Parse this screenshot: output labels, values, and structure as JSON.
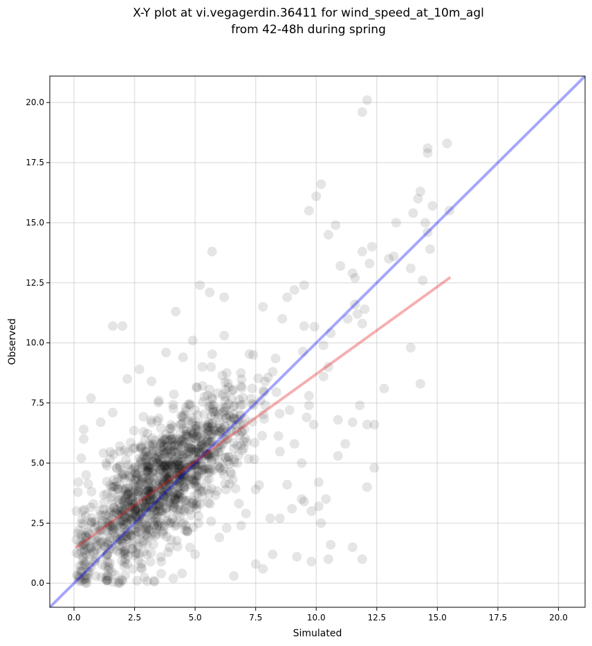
{
  "chart_data": {
    "type": "scatter",
    "title_lines": [
      "X-Y plot at vi.vegagerdin.36411 for wind_speed_at_10m_agl",
      "from 42-48h during spring"
    ],
    "xlabel": "Simulated",
    "ylabel": "Observed",
    "xlim": [
      -1.0,
      21.1
    ],
    "ylim": [
      -1.0,
      21.1
    ],
    "x_ticks": [
      0.0,
      2.5,
      5.0,
      7.5,
      10.0,
      12.5,
      15.0,
      17.5,
      20.0
    ],
    "x_tick_labels": [
      "0.0",
      "2.5",
      "5.0",
      "7.5",
      "10.0",
      "12.5",
      "15.0",
      "17.5",
      "20.0"
    ],
    "y_ticks": [
      0.0,
      2.5,
      5.0,
      7.5,
      10.0,
      12.5,
      15.0,
      17.5,
      20.0
    ],
    "y_tick_labels": [
      "0.0",
      "2.5",
      "5.0",
      "7.5",
      "10.0",
      "12.5",
      "15.0",
      "17.5",
      "20.0"
    ],
    "grid": true,
    "point_color": "#000000",
    "point_alpha": 0.1,
    "reference_line": {
      "x": [
        -1.0,
        21.1
      ],
      "y": [
        -1.0,
        21.1
      ],
      "color": "#0000ff",
      "alpha": 0.35
    },
    "regression_line": {
      "x": [
        0.1,
        15.5
      ],
      "y": [
        1.5,
        12.7
      ],
      "color": "#e31a1c",
      "alpha": 0.35
    },
    "points": {
      "x": [
        12.1,
        11.9,
        15.4,
        14.6,
        14.6,
        15.5,
        14.5,
        14.8,
        14.3,
        14.2,
        14.0,
        14.6,
        14.7,
        14.4,
        13.9,
        13.3,
        13.2,
        13.0,
        12.3,
        12.2,
        11.9,
        12.0,
        11.5,
        11.6,
        11.7,
        10.8,
        10.5,
        10.2,
        10.0,
        9.7,
        9.5,
        9.1,
        8.8,
        11.0,
        11.3,
        11.6,
        11.9,
        12.8,
        12.4,
        13.9,
        14.3,
        12.4,
        12.1,
        11.9,
        11.5,
        10.5,
        10.2,
        9.8,
        9.4,
        9.0,
        8.5,
        12.1,
        10.4,
        10.1,
        10.6,
        9.8,
        9.2,
        9.5,
        8.2,
        7.8,
        7.5,
        6.6,
        6.9,
        5.0,
        5.7,
        5.2,
        4.2,
        2.0,
        1.6,
        0.7,
        0.4,
        0.1,
        0.2,
        2.7,
        3.8,
        3.2,
        2.2,
        6.2,
        7.8,
        8.6,
        9.5,
        10.3,
        10.6,
        9.7,
        9.6,
        8.2,
        7.4,
        7.7,
        4.9,
        5.3,
        4.5,
        3.5,
        0.3,
        0.5,
        0.4,
        1.1,
        1.6,
        3.8,
        4.5,
        5.1,
        6.9,
        6.2,
        5.6,
        4.1,
        3.3,
        3.6,
        2.6,
        1.9,
        2.2,
        8.8,
        9.4,
        10.1,
        10.9,
        11.2,
        11.5,
        11.8,
        10.9,
        9.9,
        9.1,
        10.3,
        10.5,
        9.7,
        8.9,
        7.5,
        6.3,
        6.0,
        8.1,
        7.1,
        3.0,
        2.8,
        3.6,
        0.9
      ],
      "y": [
        20.1,
        19.6,
        18.3,
        18.1,
        17.9,
        15.5,
        15.0,
        15.7,
        16.3,
        16.0,
        15.4,
        14.6,
        13.9,
        12.6,
        13.1,
        15.0,
        13.6,
        13.5,
        14.0,
        13.3,
        13.8,
        11.4,
        12.9,
        12.7,
        11.2,
        14.9,
        14.5,
        16.6,
        16.1,
        15.5,
        12.4,
        12.2,
        11.9,
        13.2,
        11.0,
        11.6,
        10.8,
        8.1,
        6.6,
        9.8,
        8.3,
        4.8,
        4.0,
        1.0,
        1.5,
        1.0,
        2.5,
        3.0,
        3.5,
        3.1,
        2.7,
        6.6,
        3.5,
        3.2,
        1.6,
        0.9,
        1.1,
        3.4,
        1.2,
        0.6,
        0.8,
        0.3,
        2.4,
        1.2,
        13.8,
        12.4,
        11.3,
        10.7,
        10.7,
        7.7,
        6.4,
        3.0,
        2.2,
        8.9,
        9.6,
        8.4,
        8.5,
        11.9,
        11.5,
        11.0,
        10.7,
        9.9,
        10.4,
        7.4,
        6.9,
        8.8,
        9.5,
        7.6,
        10.1,
        9.0,
        9.4,
        7.6,
        5.2,
        4.5,
        6.0,
        6.7,
        7.1,
        6.2,
        5.5,
        7.0,
        8.2,
        10.3,
        12.1,
        0.2,
        0.1,
        0.4,
        0.1,
        0.0,
        0.8,
        4.1,
        5.0,
        4.2,
        5.3,
        5.8,
        6.7,
        7.4,
        6.8,
        6.6,
        5.8,
        8.6,
        9.0,
        7.8,
        7.2,
        3.9,
        2.3,
        1.9,
        2.7,
        2.9,
        1.2,
        0.6,
        0.9,
        0.3
      ]
    },
    "cluster": {
      "x_mean": 3.6,
      "y_mean": 4.1,
      "x_sd": 1.8,
      "y_sd": 1.9,
      "correlation": 0.75,
      "count": 1250
    }
  }
}
